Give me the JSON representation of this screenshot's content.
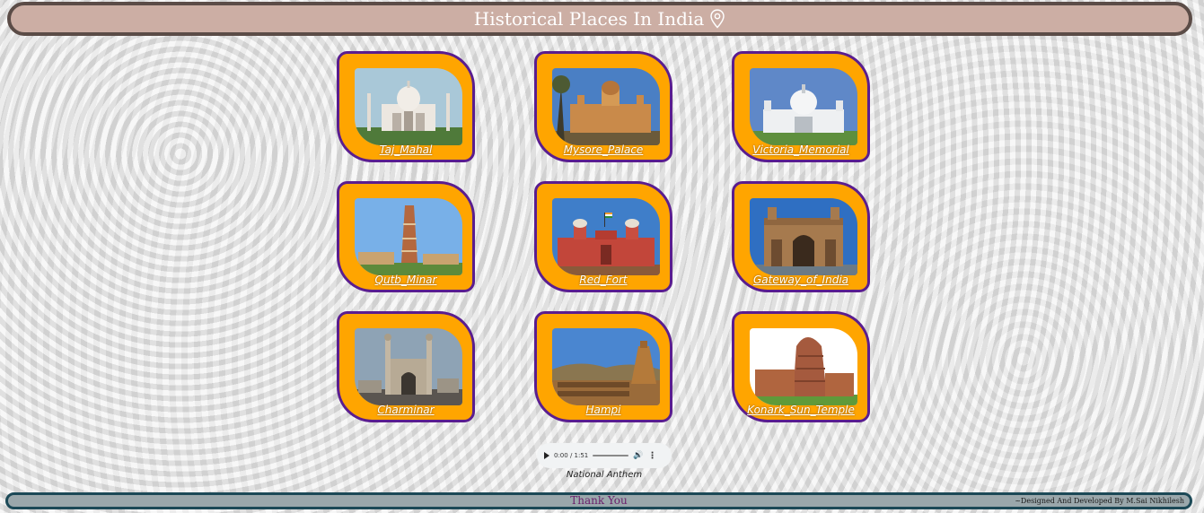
{
  "header": {
    "title": "Historical Places In India",
    "icon": "location-pin-icon"
  },
  "places": [
    {
      "label": "Taj_Mahal",
      "photo": "taj-mahal"
    },
    {
      "label": "Mysore_Palace",
      "photo": "mysore-palace"
    },
    {
      "label": "Victoria_Memorial",
      "photo": "victoria-memorial"
    },
    {
      "label": "Qutb_Minar",
      "photo": "qutb-minar"
    },
    {
      "label": "Red_Fort",
      "photo": "red-fort"
    },
    {
      "label": "Gateway_of_India",
      "photo": "gateway-of-india"
    },
    {
      "label": "Charminar",
      "photo": "charminar"
    },
    {
      "label": "Hampi",
      "photo": "hampi"
    },
    {
      "label": "Konark_Sun_Temple",
      "photo": "konark-sun-temple"
    }
  ],
  "audio": {
    "time": "0:00 / 1:51",
    "caption": "National Anthem"
  },
  "footer": {
    "thanks": "Thank You",
    "credit": "~Designed And Developed By M.Sai Nikhilesh"
  },
  "colors": {
    "card_bg": "#ffa500",
    "card_border": "#5a1d8f",
    "header_bg": "#ccaea4",
    "header_border": "#5b4c47",
    "footer_bg": "#9aa7ab",
    "footer_border": "#1c4957"
  }
}
